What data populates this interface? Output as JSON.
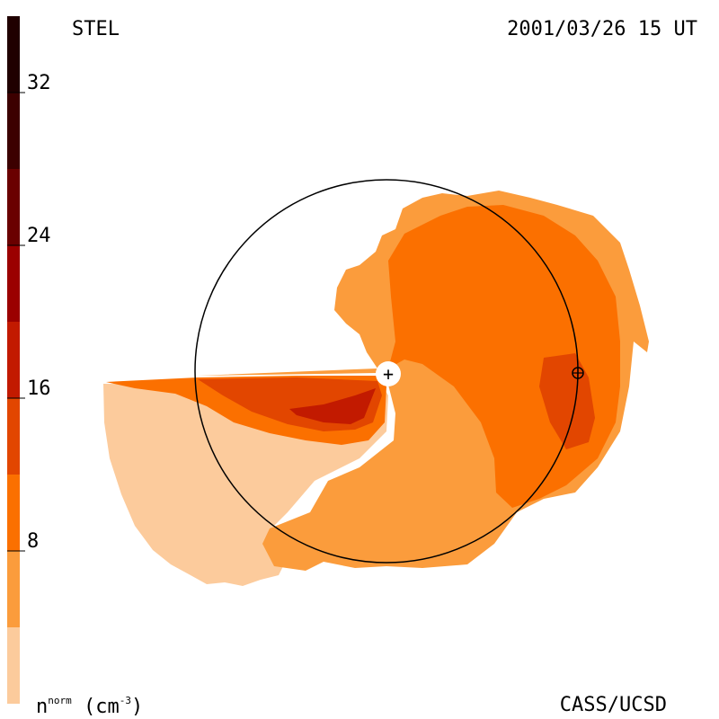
{
  "header": {
    "station": "STEL",
    "timestamp": "2001/03/26 15 UT"
  },
  "footer": {
    "credit": "CASS/UCSD",
    "unit_base": "n",
    "unit_sup": "norm",
    "unit_paren_open": "(cm",
    "unit_exp": "-3",
    "unit_paren_close": ")"
  },
  "colorbar": {
    "ticks": [
      "32",
      "24",
      "16",
      "8"
    ],
    "tick_values": [
      32,
      24,
      16,
      8
    ],
    "range": [
      0,
      36
    ],
    "levels": [
      {
        "from": 0,
        "to": 4,
        "color": "#fccb9c"
      },
      {
        "from": 4,
        "to": 8,
        "color": "#fb9c3c"
      },
      {
        "from": 8,
        "to": 12,
        "color": "#fb7000"
      },
      {
        "from": 12,
        "to": 16,
        "color": "#e24600"
      },
      {
        "from": 16,
        "to": 20,
        "color": "#c21a00"
      },
      {
        "from": 20,
        "to": 24,
        "color": "#9b0000"
      },
      {
        "from": 24,
        "to": 28,
        "color": "#6a0000"
      },
      {
        "from": 28,
        "to": 32,
        "color": "#3c0000"
      },
      {
        "from": 32,
        "to": 36,
        "color": "#200000"
      }
    ]
  },
  "map": {
    "sun_symbol": "+",
    "earth_symbol": "⊕",
    "colors": {
      "level1": "#fccb9c",
      "level2": "#fb9c3c",
      "level3": "#fb7000",
      "level4": "#e24600",
      "level5": "#c21a00"
    }
  }
}
